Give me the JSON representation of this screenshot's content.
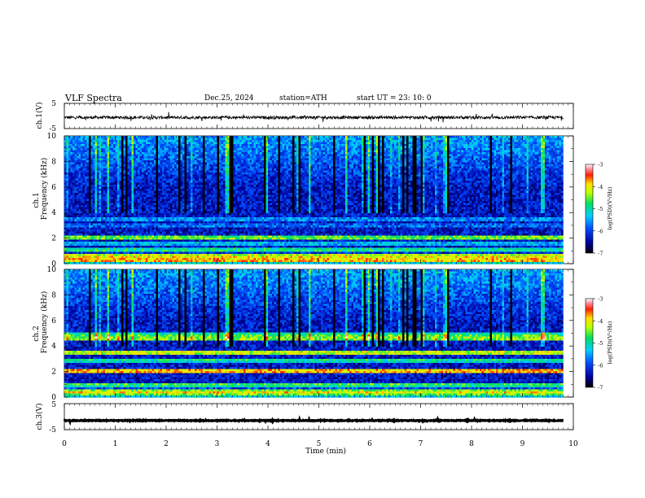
{
  "header": {
    "title": "VLF  Spectra",
    "date": "Dec.25, 2024",
    "station": "station=ATH",
    "start": "start  UT  =   23: 10: 0"
  },
  "chart_data": [
    {
      "type": "line",
      "panel": "ch1-waveform",
      "ylabel": "ch.1(V)",
      "yticks": [
        "5",
        "-5"
      ],
      "ylim": [
        -5,
        5
      ],
      "x_range": [
        0,
        9.8
      ],
      "level": -0.6,
      "noise_amplitude": 0.6,
      "color": "#000000"
    },
    {
      "type": "heatmap",
      "panel": "ch1-spectrogram",
      "ylabel_lines": [
        "ch.1",
        "Frequency  (kHz)"
      ],
      "yticks": [
        "0",
        "2",
        "4",
        "6",
        "8",
        "10"
      ],
      "ylim": [
        0,
        10
      ],
      "x_range": [
        0,
        9.8
      ],
      "colorbar": {
        "label": "log(PSD)(V²/Hz)",
        "ticks": [
          "-3",
          "-4",
          "-5",
          "-6",
          "-7"
        ],
        "range": [
          -7,
          -3
        ]
      },
      "bands_khz": [
        {
          "f": 0.3,
          "level": -3.6
        },
        {
          "f": 0.6,
          "level": -3.9
        },
        {
          "f": 1.1,
          "level": -4.7
        },
        {
          "f": 1.6,
          "level": -5.2
        },
        {
          "f": 2.05,
          "level": -4.3
        },
        {
          "f": 3.0,
          "level": -5.6
        },
        {
          "f": 3.5,
          "level": -5.4
        },
        {
          "f": 4.6,
          "level": -6.2
        }
      ]
    },
    {
      "type": "heatmap",
      "panel": "ch2-spectrogram",
      "ylabel_lines": [
        "ch.2",
        "Frequency  (kHz)"
      ],
      "yticks": [
        "0",
        "2",
        "4",
        "6",
        "8",
        "10"
      ],
      "ylim": [
        0,
        10
      ],
      "x_range": [
        0,
        9.8
      ],
      "colorbar": {
        "label": "log(PSD)(V²/Hz)",
        "ticks": [
          "-3",
          "-4",
          "-5",
          "-6",
          "-7"
        ],
        "range": [
          -7,
          -3
        ]
      },
      "bands_khz": [
        {
          "f": 0.4,
          "level": -4.0
        },
        {
          "f": 1.0,
          "level": -4.6
        },
        {
          "f": 2.05,
          "level": -3.6
        },
        {
          "f": 2.9,
          "level": -4.8
        },
        {
          "f": 3.5,
          "level": -4.0
        },
        {
          "f": 4.6,
          "level": -4.2
        },
        {
          "f": 4.85,
          "level": -4.6
        }
      ]
    },
    {
      "type": "line",
      "panel": "ch3-waveform",
      "ylabel": "ch.3(V)",
      "yticks": [
        "5",
        "-5"
      ],
      "ylim": [
        -5,
        5
      ],
      "x_range": [
        0,
        9.8
      ],
      "level": -1.5,
      "noise_amplitude": 0.15,
      "color": "#000000"
    }
  ],
  "xaxis": {
    "label": "Time  (min)",
    "ticks": [
      "0",
      "1",
      "2",
      "3",
      "4",
      "5",
      "6",
      "7",
      "8",
      "9",
      "10"
    ],
    "range": [
      0,
      10
    ]
  }
}
